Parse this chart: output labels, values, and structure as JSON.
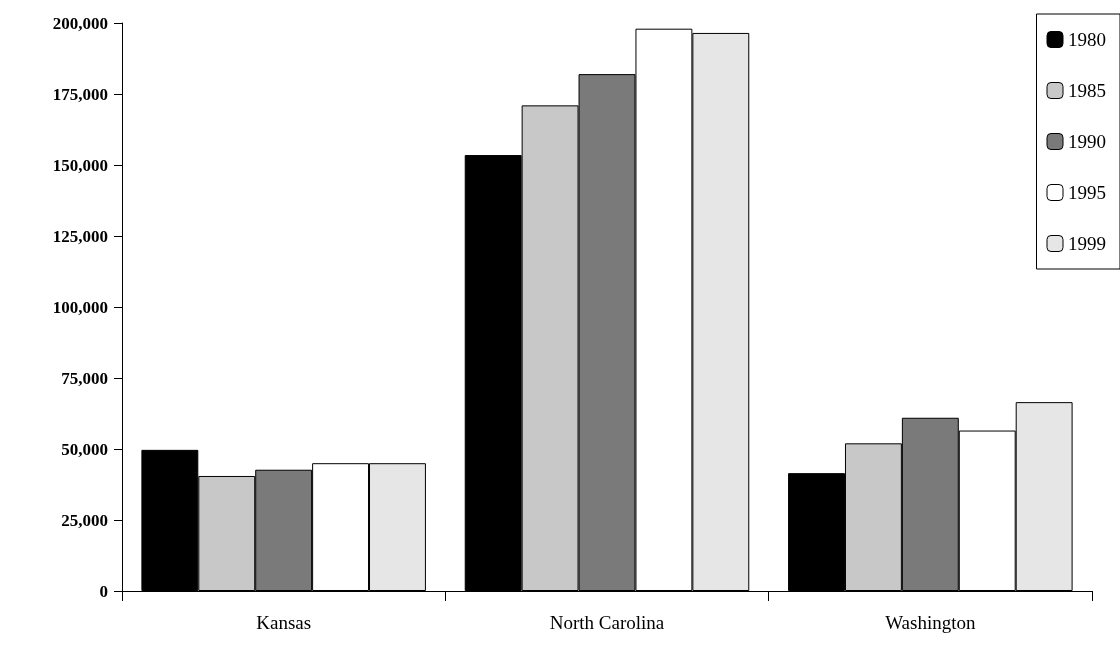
{
  "chart_data": {
    "type": "bar",
    "categories": [
      "Kansas",
      "North Carolina",
      "Washington"
    ],
    "series": [
      {
        "name": "1980",
        "color": "#000000",
        "values": [
          49700,
          153500,
          41500
        ]
      },
      {
        "name": "1985",
        "color": "#c8c8c8",
        "values": [
          40500,
          171000,
          52000
        ]
      },
      {
        "name": "1990",
        "color": "#7a7a7a",
        "values": [
          42700,
          182000,
          61000
        ]
      },
      {
        "name": "1995",
        "color": "#ffffff",
        "values": [
          45000,
          198000,
          56500
        ]
      },
      {
        "name": "1999",
        "color": "#e6e6e6",
        "values": [
          45000,
          196500,
          66500
        ]
      }
    ],
    "ylim": [
      0,
      200000
    ],
    "yticks": [
      {
        "value": 0,
        "label": "0"
      },
      {
        "value": 25000,
        "label": "25,000"
      },
      {
        "value": 50000,
        "label": "50,000"
      },
      {
        "value": 75000,
        "label": "75,000"
      },
      {
        "value": 100000,
        "label": "100,000"
      },
      {
        "value": 125000,
        "label": "125,000"
      },
      {
        "value": 150000,
        "label": "150,000"
      },
      {
        "value": 175000,
        "label": "175,000"
      },
      {
        "value": 200000,
        "label": "200,000"
      }
    ],
    "grid": false,
    "legend": "top right"
  }
}
